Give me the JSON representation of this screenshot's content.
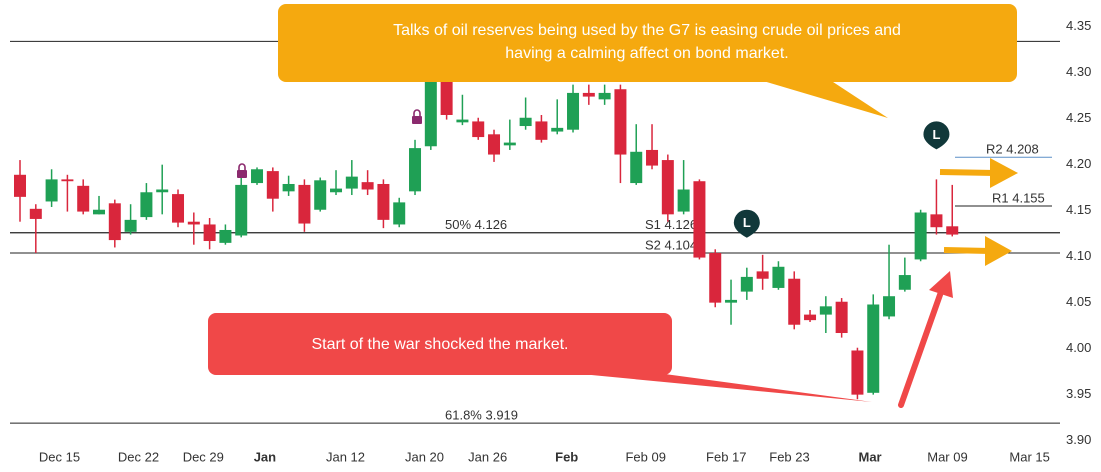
{
  "chart_data": {
    "type": "candlestick",
    "up_color": "#1fa055",
    "down_color": "#d9263c",
    "xlim": [
      -1.266,
      65.82
    ],
    "ylim": [
      3.892,
      4.379
    ],
    "yticks": [
      {
        "value": 3.9,
        "label": "3.90"
      },
      3.95,
      {
        "value": 4.0,
        "label": "4.00"
      },
      4.05,
      {
        "value": 4.1,
        "label": "4.10"
      },
      4.15,
      {
        "value": 4.2,
        "label": "4.20"
      },
      4.25,
      {
        "value": 4.3,
        "label": "4.30"
      },
      4.35
    ],
    "xticks": [
      {
        "value": 2.5,
        "label": "Dec 15"
      },
      {
        "value": 7.5,
        "label": "Dec 22"
      },
      {
        "value": 11.6,
        "label": "Dec 29"
      },
      {
        "value": 15.5,
        "label": "Jan"
      },
      {
        "value": 20.6,
        "label": "Jan 12"
      },
      {
        "value": 25.6,
        "label": "Jan 20"
      },
      {
        "value": 29.6,
        "label": "Jan 26"
      },
      {
        "value": 34.6,
        "label": "Feb"
      },
      {
        "value": 39.6,
        "label": "Feb 09"
      },
      {
        "value": 44.7,
        "label": "Feb 17"
      },
      {
        "value": 48.7,
        "label": "Feb 23"
      },
      {
        "value": 53.8,
        "label": "Mar"
      },
      {
        "value": 58.7,
        "label": "Mar 09"
      },
      {
        "value": 63.9,
        "label": "Mar 15"
      }
    ],
    "bold_xticks": [
      3,
      7,
      11
    ],
    "open": [
      4.189,
      4.152,
      4.16,
      4.184,
      4.177,
      4.146,
      4.158,
      4.127,
      4.143,
      4.17,
      4.168,
      4.138,
      4.135,
      4.115,
      4.123,
      4.18,
      4.193,
      4.171,
      4.178,
      4.151,
      4.17,
      4.174,
      4.181,
      4.179,
      4.135,
      4.171,
      4.22,
      4.292,
      4.246,
      4.247,
      4.233,
      4.221,
      4.242,
      4.247,
      4.236,
      4.238,
      4.278,
      4.271,
      4.282,
      4.18,
      4.216,
      4.205,
      4.149,
      4.182,
      4.104,
      4.05,
      4.062,
      4.084,
      4.066,
      4.076,
      4.037,
      4.037,
      4.051,
      3.998,
      3.952,
      4.035,
      4.064,
      4.097,
      4.146,
      4.133
    ],
    "high": [
      4.205,
      4.157,
      4.195,
      4.189,
      4.184,
      4.166,
      4.162,
      4.157,
      4.18,
      4.2,
      4.173,
      4.148,
      4.142,
      4.135,
      4.186,
      4.197,
      4.197,
      4.188,
      4.184,
      4.186,
      4.194,
      4.205,
      4.194,
      4.184,
      4.164,
      4.227,
      4.303,
      4.298,
      4.276,
      4.251,
      4.238,
      4.249,
      4.273,
      4.254,
      4.271,
      4.287,
      4.287,
      4.287,
      4.287,
      4.244,
      4.244,
      4.211,
      4.205,
      4.184,
      4.108,
      4.075,
      4.088,
      4.102,
      4.095,
      4.084,
      4.042,
      4.057,
      4.055,
      4.001,
      4.059,
      4.113,
      4.099,
      4.151,
      4.184,
      4.178
    ],
    "low": [
      4.138,
      4.104,
      4.154,
      4.149,
      4.146,
      4.146,
      4.11,
      4.124,
      4.14,
      4.146,
      4.132,
      4.113,
      4.108,
      4.113,
      4.121,
      4.178,
      4.149,
      4.166,
      4.127,
      4.149,
      4.167,
      4.167,
      4.167,
      4.131,
      4.132,
      4.167,
      4.216,
      4.249,
      4.243,
      4.227,
      4.203,
      4.216,
      4.238,
      4.224,
      4.233,
      4.235,
      4.265,
      4.265,
      4.18,
      4.178,
      4.195,
      4.138,
      4.146,
      4.097,
      4.045,
      4.026,
      4.053,
      4.064,
      4.064,
      4.021,
      4.029,
      4.017,
      4.012,
      3.945,
      3.95,
      4.032,
      4.062,
      4.095,
      4.124,
      4.122
    ],
    "close": [
      4.165,
      4.141,
      4.184,
      4.182,
      4.149,
      4.151,
      4.118,
      4.14,
      4.17,
      4.173,
      4.137,
      4.135,
      4.117,
      4.129,
      4.178,
      4.195,
      4.163,
      4.179,
      4.136,
      4.183,
      4.174,
      4.187,
      4.173,
      4.14,
      4.159,
      4.218,
      4.292,
      4.254,
      4.249,
      4.23,
      4.211,
      4.224,
      4.251,
      4.227,
      4.24,
      4.278,
      4.274,
      4.278,
      4.211,
      4.214,
      4.199,
      4.146,
      4.173,
      4.099,
      4.05,
      4.053,
      4.078,
      4.076,
      4.089,
      4.026,
      4.031,
      4.046,
      4.017,
      3.95,
      4.048,
      4.057,
      4.08,
      4.148,
      4.132,
      4.124
    ],
    "levels": [
      {
        "value": 4.334
      },
      {
        "value": 4.126,
        "label": "50% 4.126"
      },
      {
        "value": 3.919,
        "label": "61.8% 3.919"
      },
      {
        "value": 4.126,
        "label": "S1 4.126"
      },
      {
        "value": 4.104,
        "label": "S2 4.104"
      },
      {
        "value": 4.155,
        "label": "R1 4.155"
      },
      {
        "value": 4.208,
        "label": "R2 4.208",
        "color": "#5b8fc7"
      }
    ],
    "markers": [
      {
        "label": "L",
        "index": 46
      },
      {
        "label": "L",
        "index": 58
      }
    ],
    "annotations": [
      {
        "lines": [
          "Talks of oil reserves being used by the G7 is easing crude oil prices and",
          "having a calming affect on bond market."
        ]
      },
      {
        "lines": [
          "Start of the war shocked the market."
        ]
      }
    ]
  }
}
